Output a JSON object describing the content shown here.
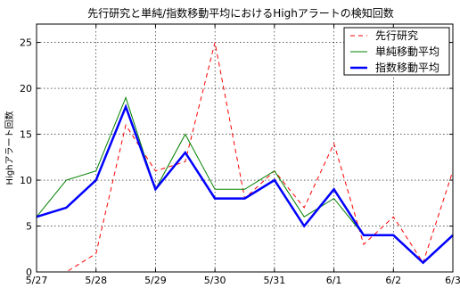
{
  "chart_data": {
    "type": "line",
    "title": "先行研究と単純/指数移動平均におけるHighアラートの検知回数",
    "xlabel": "",
    "ylabel": "Highアラート回数",
    "x_tick_labels": [
      "5/27",
      "5/28",
      "5/29",
      "5/30",
      "5/31",
      "6/1",
      "6/2",
      "6/3"
    ],
    "x": [
      0,
      0.5,
      1,
      1.5,
      2,
      2.5,
      3,
      3.5,
      4,
      4.5,
      5,
      5.5,
      6,
      6.5,
      7
    ],
    "xlim": [
      0,
      7
    ],
    "ylim": [
      0,
      27
    ],
    "y_ticks": [
      0,
      5,
      10,
      15,
      20,
      25
    ],
    "grid": true,
    "legend_position": "top-right",
    "series": [
      {
        "name": "先行研究",
        "color": "#ff0000",
        "style": "dashed",
        "width": 1,
        "values": [
          0,
          0,
          2,
          16,
          11,
          12,
          25,
          8,
          11,
          7,
          14,
          3,
          6,
          1,
          11
        ]
      },
      {
        "name": "単純移動平均",
        "color": "#008000",
        "style": "solid",
        "width": 1,
        "values": [
          6,
          10,
          11,
          19,
          9,
          15,
          9,
          9,
          11,
          6,
          8,
          4,
          4,
          1,
          4
        ]
      },
      {
        "name": "指数移動平均",
        "color": "#0000ff",
        "style": "solid",
        "width": 2.5,
        "values": [
          6,
          7,
          10,
          18,
          9,
          13,
          8,
          8,
          10,
          5,
          9,
          4,
          4,
          1,
          4
        ]
      }
    ]
  }
}
